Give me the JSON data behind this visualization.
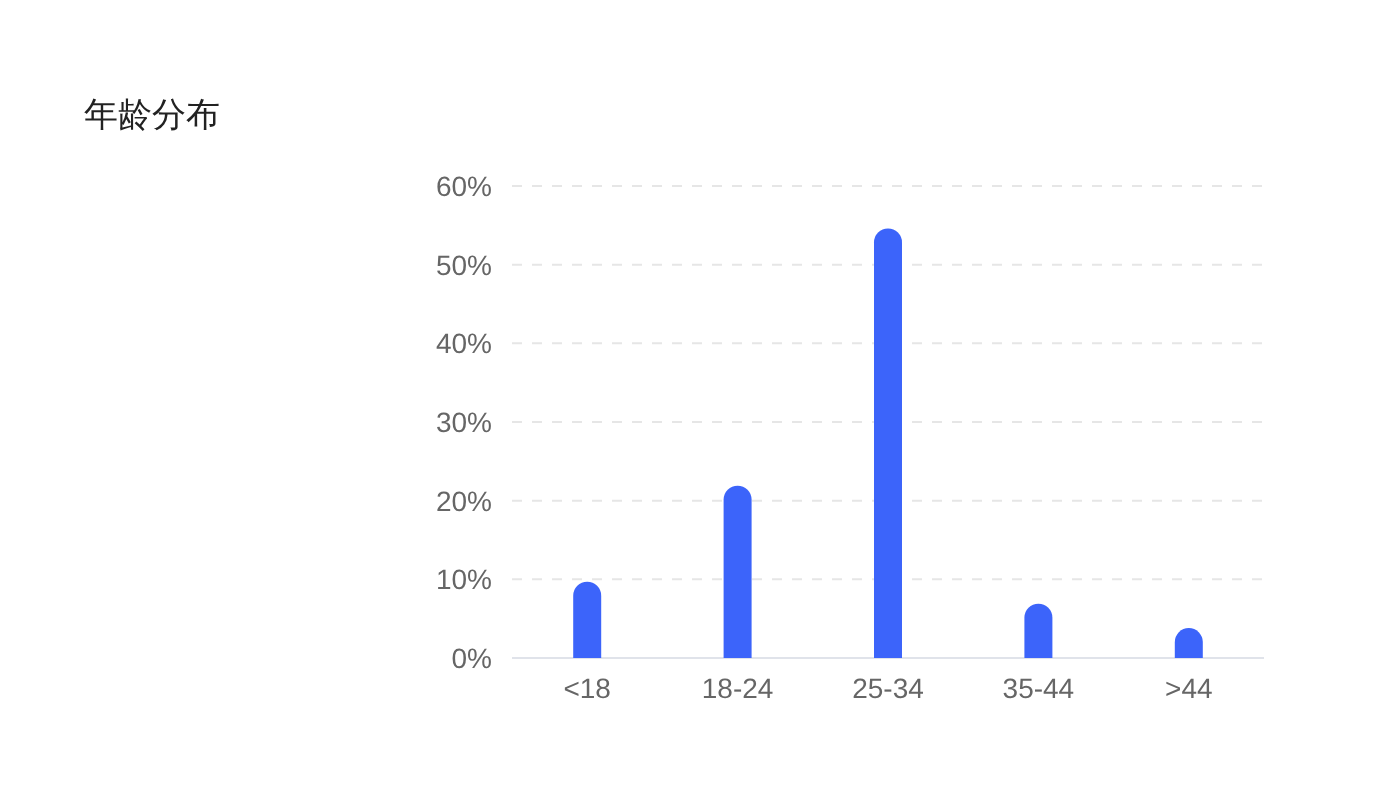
{
  "chart_data": {
    "type": "bar",
    "title": "年龄分布",
    "categories": [
      "<18",
      "18-24",
      "25-34",
      "35-44",
      ">44"
    ],
    "values": [
      9.7,
      21.9,
      54.6,
      6.9,
      3.8
    ],
    "color": "#3c64fa",
    "ylim": [
      0,
      60
    ],
    "yticks": [
      {
        "value": 0,
        "label": "0%"
      },
      {
        "value": 10,
        "label": "10%"
      },
      {
        "value": 20,
        "label": "20%"
      },
      {
        "value": 30,
        "label": "30%"
      },
      {
        "value": 40,
        "label": "40%"
      },
      {
        "value": 50,
        "label": "50%"
      },
      {
        "value": 60,
        "label": "60%"
      }
    ],
    "grid": "y"
  }
}
